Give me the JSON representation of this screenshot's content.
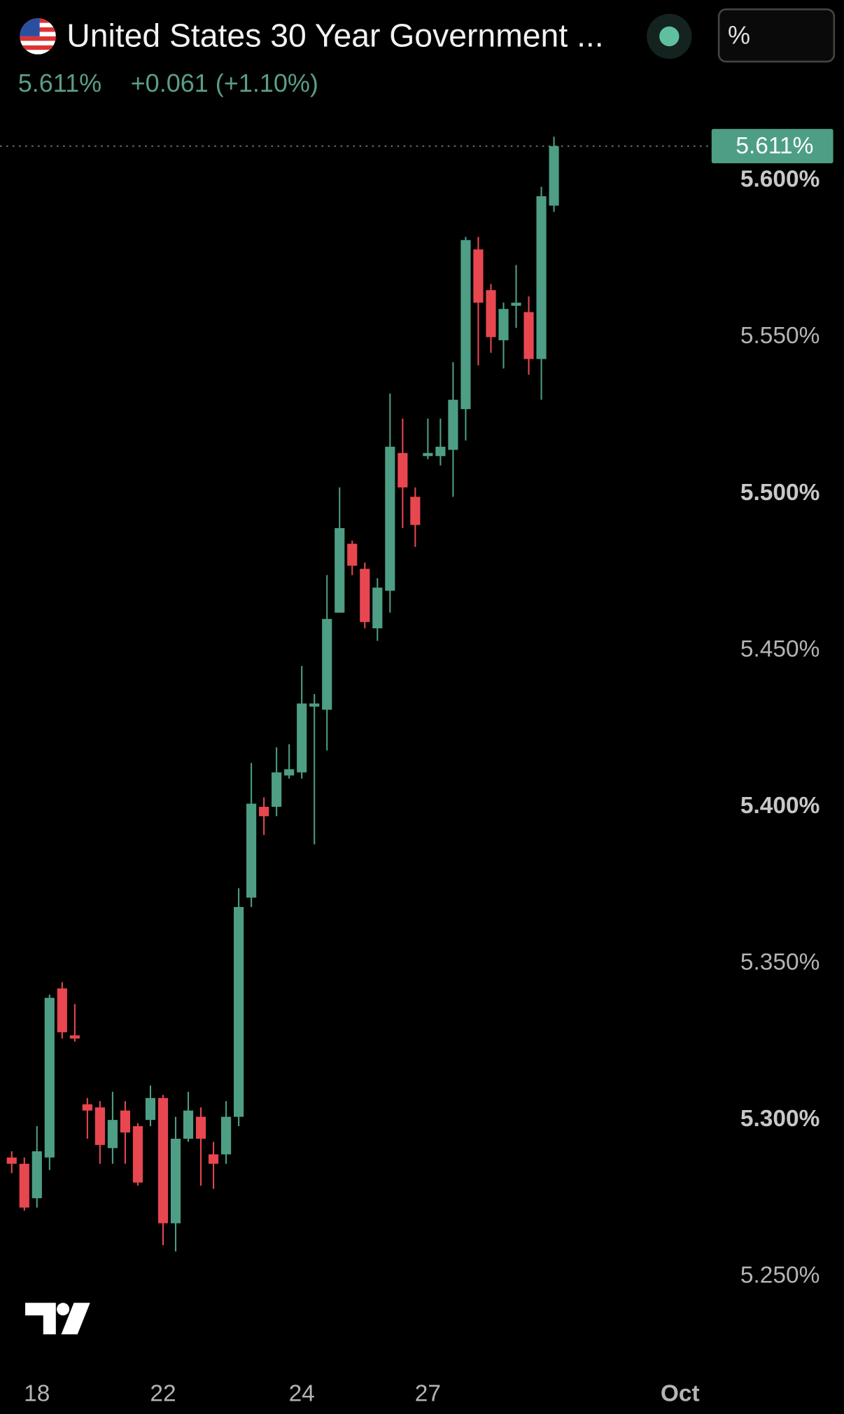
{
  "chart_data": {
    "type": "candlestick",
    "title": "United States 30 Year Government ...",
    "last": "5.611%",
    "change": "+0.061 (+1.10%)",
    "unit_selector": "%",
    "last_price": {
      "value": 5.611,
      "label": "5.611%"
    },
    "up_color": "#4d9e85",
    "down_color": "#e8474f",
    "series": {
      "open": [
        5.288,
        5.286,
        5.275,
        5.288,
        5.342,
        5.327,
        5.305,
        5.304,
        5.291,
        5.303,
        5.298,
        5.3,
        5.307,
        5.267,
        5.294,
        5.301,
        5.289,
        5.289,
        5.301,
        5.371,
        5.4,
        5.4,
        5.41,
        5.411,
        5.432,
        5.431,
        5.462,
        5.484,
        5.476,
        5.457,
        5.469,
        5.513,
        5.499,
        5.512,
        5.512,
        5.514,
        5.527,
        5.578,
        5.565,
        5.549,
        5.56,
        5.558,
        5.543,
        5.592
      ],
      "high": [
        5.29,
        5.288,
        5.298,
        5.34,
        5.344,
        5.337,
        5.307,
        5.306,
        5.309,
        5.306,
        5.299,
        5.311,
        5.308,
        5.301,
        5.309,
        5.304,
        5.293,
        5.306,
        5.374,
        5.414,
        5.403,
        5.419,
        5.42,
        5.445,
        5.436,
        5.474,
        5.502,
        5.485,
        5.478,
        5.473,
        5.532,
        5.524,
        5.502,
        5.524,
        5.524,
        5.542,
        5.582,
        5.582,
        5.567,
        5.561,
        5.573,
        5.563,
        5.598,
        5.614
      ],
      "low": [
        5.283,
        5.271,
        5.272,
        5.284,
        5.326,
        5.325,
        5.294,
        5.286,
        5.286,
        5.286,
        5.279,
        5.298,
        5.26,
        5.258,
        5.293,
        5.279,
        5.278,
        5.286,
        5.298,
        5.368,
        5.391,
        5.397,
        5.409,
        5.409,
        5.388,
        5.418,
        5.462,
        5.474,
        5.457,
        5.453,
        5.462,
        5.489,
        5.483,
        5.511,
        5.509,
        5.499,
        5.517,
        5.541,
        5.545,
        5.54,
        5.553,
        5.538,
        5.53,
        5.59
      ],
      "close": [
        5.286,
        5.272,
        5.29,
        5.339,
        5.328,
        5.326,
        5.303,
        5.292,
        5.3,
        5.296,
        5.28,
        5.307,
        5.267,
        5.294,
        5.303,
        5.294,
        5.286,
        5.301,
        5.368,
        5.401,
        5.397,
        5.411,
        5.412,
        5.433,
        5.433,
        5.46,
        5.489,
        5.477,
        5.459,
        5.47,
        5.515,
        5.502,
        5.49,
        5.513,
        5.515,
        5.53,
        5.581,
        5.561,
        5.55,
        5.559,
        5.561,
        5.543,
        5.595,
        5.611
      ]
    },
    "xlim": [
      -0.93,
      55.5
    ],
    "xticks": [
      {
        "value": 2,
        "label": "18"
      },
      {
        "value": 12,
        "label": "22"
      },
      {
        "value": 23,
        "label": "24"
      },
      {
        "value": 33,
        "label": "27"
      },
      {
        "value": 53,
        "label": "Oct"
      }
    ],
    "ylim": [
      5.22,
      5.62
    ],
    "yticks": [
      {
        "value": 5.6,
        "label": "5.600%"
      },
      {
        "value": 5.55,
        "label": "5.550%"
      },
      {
        "value": 5.5,
        "label": "5.500%"
      },
      {
        "value": 5.45,
        "label": "5.450%"
      },
      {
        "value": 5.4,
        "label": "5.400%"
      },
      {
        "value": 5.35,
        "label": "5.350%"
      },
      {
        "value": 5.3,
        "label": "5.300%"
      },
      {
        "value": 5.25,
        "label": "5.250%"
      }
    ]
  }
}
